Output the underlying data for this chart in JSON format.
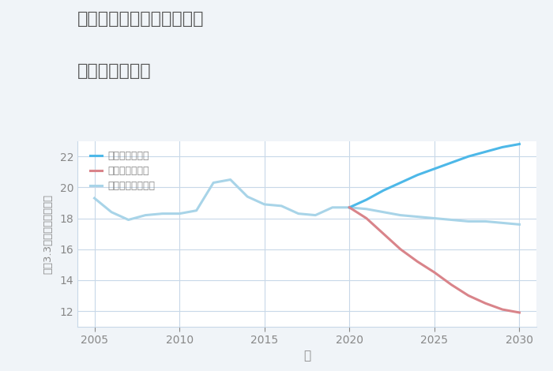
{
  "title_line1": "埼玉県本庄市児玉町金屋の",
  "title_line2": "土地の価格推移",
  "xlabel": "年",
  "ylabel": "坪（3.3㎡）単価（万円）",
  "background_color": "#f0f4f8",
  "plot_bg_color": "#ffffff",
  "ylim": [
    11,
    23
  ],
  "xlim": [
    2004,
    2031
  ],
  "yticks": [
    12,
    14,
    16,
    18,
    20,
    22
  ],
  "xticks": [
    2005,
    2010,
    2015,
    2020,
    2025,
    2030
  ],
  "normal_years": [
    2005,
    2006,
    2007,
    2008,
    2009,
    2010,
    2011,
    2012,
    2013,
    2014,
    2015,
    2016,
    2017,
    2018,
    2019,
    2020,
    2021,
    2022,
    2023,
    2024,
    2025,
    2026,
    2027,
    2028,
    2029,
    2030
  ],
  "normal_values": [
    19.3,
    18.4,
    17.9,
    18.2,
    18.3,
    18.3,
    18.5,
    20.3,
    20.5,
    19.4,
    18.9,
    18.8,
    18.3,
    18.2,
    18.7,
    18.7,
    18.6,
    18.4,
    18.2,
    18.1,
    18.0,
    17.9,
    17.8,
    17.8,
    17.7,
    17.6
  ],
  "good_years": [
    2020,
    2021,
    2022,
    2023,
    2024,
    2025,
    2026,
    2027,
    2028,
    2029,
    2030
  ],
  "good_values": [
    18.7,
    19.2,
    19.8,
    20.3,
    20.8,
    21.2,
    21.6,
    22.0,
    22.3,
    22.6,
    22.8
  ],
  "bad_years": [
    2020,
    2021,
    2022,
    2023,
    2024,
    2025,
    2026,
    2027,
    2028,
    2029,
    2030
  ],
  "bad_values": [
    18.7,
    18.0,
    17.0,
    16.0,
    15.2,
    14.5,
    13.7,
    13.0,
    12.5,
    12.1,
    11.9
  ],
  "good_color": "#4db8e8",
  "bad_color": "#d9848a",
  "normal_color": "#a8d4e8",
  "legend_good": "グッドシナリオ",
  "legend_bad": "バッドシナリオ",
  "legend_normal": "ノーマルシナリオ",
  "title_color": "#555555",
  "axis_color": "#888888",
  "grid_color": "#c8d8e8",
  "tick_color": "#888888"
}
